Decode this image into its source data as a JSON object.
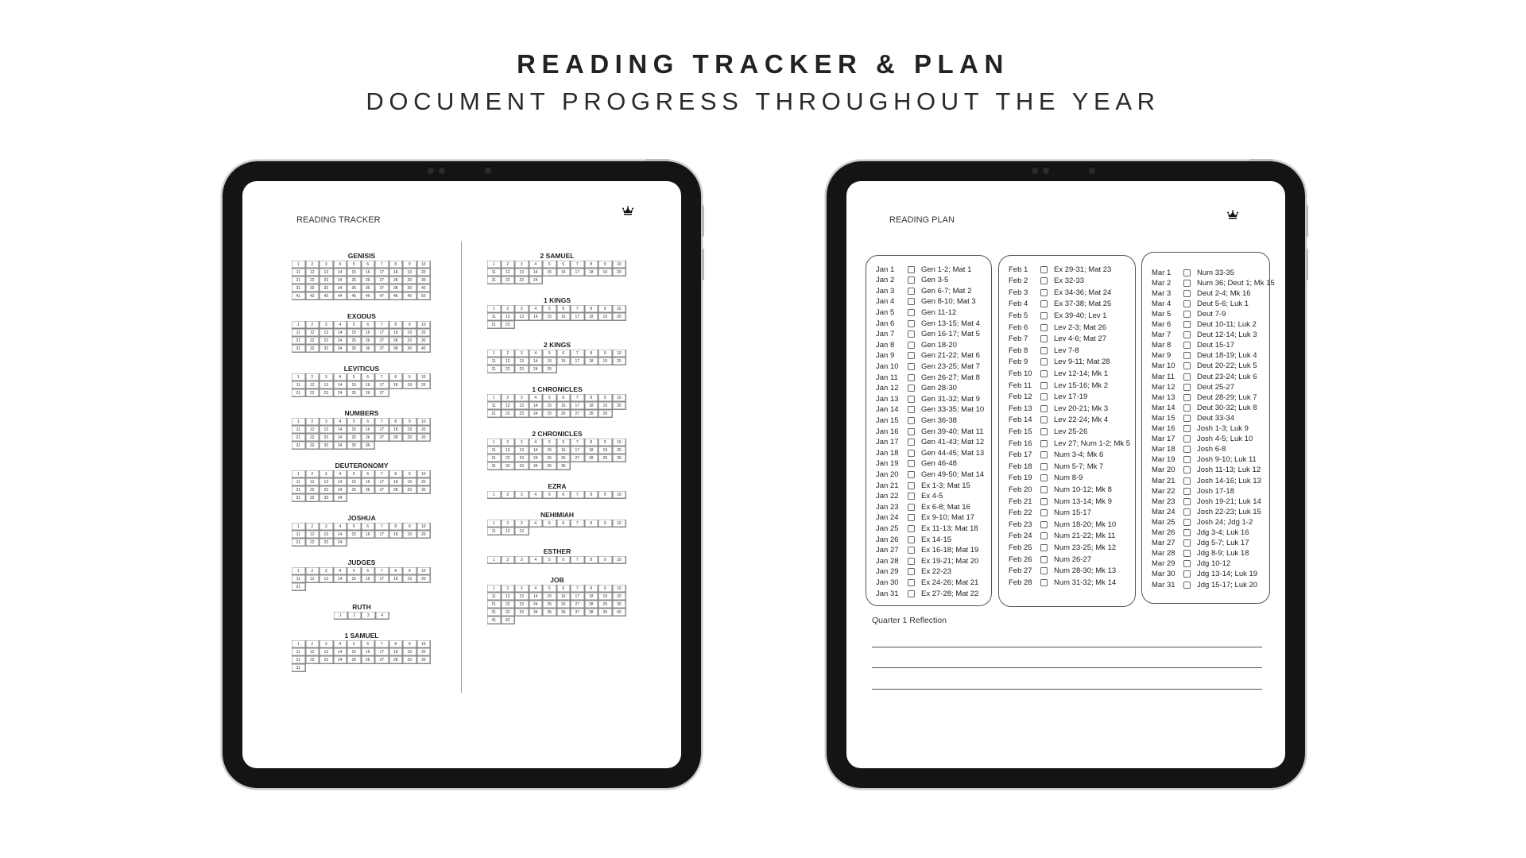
{
  "header": {
    "title": "READING TRACKER & PLAN",
    "subtitle": "DOCUMENT PROGRESS THROUGHOUT THE YEAR"
  },
  "tracker": {
    "title": "READING TRACKER",
    "columns": [
      [
        {
          "book": "GENISIS",
          "chapters": [
            1,
            2,
            3,
            4,
            5,
            6,
            7,
            8,
            9,
            10,
            11,
            12,
            13,
            14,
            15,
            16,
            17,
            18,
            19,
            20,
            21,
            22,
            23,
            24,
            25,
            26,
            27,
            28,
            29,
            30,
            31,
            32,
            33,
            34,
            35,
            36,
            37,
            38,
            39,
            40,
            41,
            42,
            43,
            44,
            45,
            46,
            47,
            48,
            49,
            50
          ]
        },
        {
          "book": "EXODUS",
          "chapters": [
            1,
            2,
            3,
            4,
            5,
            6,
            7,
            8,
            9,
            10,
            11,
            12,
            13,
            14,
            15,
            16,
            17,
            18,
            19,
            20,
            21,
            22,
            23,
            24,
            25,
            26,
            27,
            28,
            29,
            30,
            31,
            32,
            33,
            34,
            35,
            36,
            37,
            38,
            39,
            40
          ]
        },
        {
          "book": "LEVITICUS",
          "chapters": [
            1,
            2,
            3,
            4,
            5,
            6,
            7,
            8,
            9,
            10,
            11,
            12,
            13,
            14,
            15,
            16,
            17,
            18,
            19,
            20,
            21,
            22,
            23,
            24,
            25,
            26,
            27
          ]
        },
        {
          "book": "NUMBERS",
          "chapters": [
            1,
            2,
            3,
            4,
            5,
            6,
            7,
            8,
            9,
            10,
            11,
            12,
            13,
            14,
            15,
            16,
            17,
            18,
            19,
            20,
            21,
            22,
            23,
            24,
            25,
            26,
            27,
            28,
            29,
            30,
            31,
            32,
            33,
            34,
            35,
            36
          ]
        },
        {
          "book": "DEUTERONOMY",
          "chapters": [
            1,
            2,
            3,
            4,
            5,
            6,
            7,
            8,
            9,
            10,
            11,
            12,
            13,
            14,
            15,
            16,
            17,
            18,
            19,
            20,
            21,
            22,
            23,
            24,
            25,
            26,
            27,
            28,
            29,
            30,
            31,
            32,
            33,
            34
          ]
        },
        {
          "book": "JOSHUA",
          "chapters": [
            1,
            2,
            3,
            4,
            5,
            6,
            7,
            8,
            9,
            10,
            11,
            12,
            13,
            14,
            15,
            16,
            17,
            18,
            19,
            20,
            21,
            22,
            23,
            24
          ]
        },
        {
          "book": "JUDGES",
          "chapters": [
            1,
            2,
            3,
            4,
            5,
            6,
            7,
            8,
            9,
            10,
            11,
            12,
            13,
            14,
            15,
            16,
            17,
            18,
            19,
            20,
            21
          ]
        },
        {
          "book": "RUTH",
          "chapters": [
            1,
            2,
            3,
            4
          ]
        },
        {
          "book": "1 SAMUEL",
          "chapters": [
            1,
            2,
            3,
            4,
            5,
            6,
            7,
            8,
            9,
            10,
            11,
            12,
            13,
            14,
            15,
            16,
            17,
            18,
            19,
            20,
            21,
            22,
            23,
            24,
            25,
            26,
            27,
            28,
            29,
            30,
            31
          ]
        }
      ],
      [
        {
          "book": "2 SAMUEL",
          "chapters": [
            1,
            2,
            3,
            4,
            5,
            6,
            7,
            8,
            9,
            10,
            11,
            12,
            13,
            14,
            15,
            16,
            17,
            18,
            19,
            20,
            21,
            22,
            23,
            24
          ]
        },
        {
          "book": "1 KINGS",
          "chapters": [
            1,
            2,
            3,
            4,
            5,
            6,
            7,
            8,
            9,
            10,
            11,
            12,
            13,
            14,
            15,
            16,
            17,
            18,
            19,
            20,
            21,
            22
          ]
        },
        {
          "book": "2 KINGS",
          "chapters": [
            1,
            2,
            3,
            4,
            5,
            6,
            7,
            8,
            9,
            10,
            11,
            12,
            13,
            14,
            15,
            16,
            17,
            18,
            19,
            20,
            21,
            22,
            23,
            24,
            25
          ]
        },
        {
          "book": "1 CHRONICLES",
          "chapters": [
            1,
            2,
            3,
            4,
            5,
            6,
            7,
            8,
            9,
            10,
            11,
            12,
            13,
            14,
            15,
            16,
            17,
            18,
            19,
            20,
            21,
            22,
            23,
            24,
            25,
            26,
            27,
            28,
            29
          ]
        },
        {
          "book": "2 CHRONICLES",
          "chapters": [
            1,
            2,
            3,
            4,
            5,
            6,
            7,
            8,
            9,
            10,
            11,
            12,
            13,
            14,
            15,
            16,
            17,
            18,
            19,
            20,
            21,
            22,
            23,
            24,
            25,
            26,
            27,
            28,
            29,
            30,
            31,
            32,
            33,
            34,
            35,
            36
          ]
        },
        {
          "book": "EZRA",
          "chapters": [
            1,
            2,
            3,
            4,
            5,
            6,
            7,
            8,
            9,
            10
          ]
        },
        {
          "book": "NEHIMIAH",
          "chapters": [
            1,
            2,
            3,
            4,
            5,
            6,
            7,
            8,
            9,
            10,
            11,
            12,
            13
          ]
        },
        {
          "book": "ESTHER",
          "chapters": [
            1,
            2,
            3,
            4,
            5,
            6,
            7,
            8,
            9,
            10
          ]
        },
        {
          "book": "JOB",
          "chapters": [
            1,
            2,
            3,
            4,
            5,
            6,
            7,
            8,
            9,
            10,
            11,
            12,
            13,
            14,
            15,
            16,
            17,
            18,
            19,
            20,
            21,
            22,
            23,
            24,
            25,
            26,
            27,
            28,
            29,
            30,
            31,
            32,
            33,
            34,
            35,
            36,
            37,
            38,
            39,
            40,
            41,
            42
          ]
        }
      ]
    ]
  },
  "plan": {
    "title": "READING PLAN",
    "columns": [
      [
        [
          "Jan 1",
          "Gen 1-2; Mat 1"
        ],
        [
          "Jan 2",
          "Gen 3-5"
        ],
        [
          "Jan 3",
          "Gen 6-7; Mat 2"
        ],
        [
          "Jan 4",
          "Gen 8-10; Mat 3"
        ],
        [
          "Jan 5",
          "Gen 11-12"
        ],
        [
          "Jan 6",
          "Gen 13-15; Mat 4"
        ],
        [
          "Jan 7",
          "Gen 16-17; Mat 5"
        ],
        [
          "Jan 8",
          "Gen 18-20"
        ],
        [
          "Jan 9",
          "Gen 21-22; Mat 6"
        ],
        [
          "Jan 10",
          "Gen 23-25; Mat 7"
        ],
        [
          "Jan 11",
          "Gen 26-27; Mat 8"
        ],
        [
          "Jan 12",
          "Gen 28-30"
        ],
        [
          "Jan 13",
          "Gen 31-32; Mat 9"
        ],
        [
          "Jan 14",
          "Gen 33-35; Mat 10"
        ],
        [
          "Jan 15",
          "Gen 36-38"
        ],
        [
          "Jan 16",
          "Gen 39-40; Mat 11"
        ],
        [
          "Jan 17",
          "Gen 41-43; Mat 12"
        ],
        [
          "Jan 18",
          "Gen 44-45; Mat 13"
        ],
        [
          "Jan 19",
          "Gen 46-48"
        ],
        [
          "Jan 20",
          "Gen 49-50; Mat 14"
        ],
        [
          "Jan 21",
          "Ex 1-3; Mat 15"
        ],
        [
          "Jan 22",
          "Ex 4-5"
        ],
        [
          "Jan 23",
          "Ex 6-8; Mat 16"
        ],
        [
          "Jan 24",
          "Ex 9-10; Mat 17"
        ],
        [
          "Jan 25",
          "Ex 11-13; Mat 18"
        ],
        [
          "Jan 26",
          "Ex 14-15"
        ],
        [
          "Jan 27",
          "Ex 16-18; Mat 19"
        ],
        [
          "Jan 28",
          "Ex 19-21; Mat 20"
        ],
        [
          "Jan 29",
          "Ex 22-23"
        ],
        [
          "Jan 30",
          "Ex 24-26; Mat 21"
        ],
        [
          "Jan 31",
          "Ex 27-28; Mat 22"
        ]
      ],
      [
        [
          "Feb 1",
          "Ex 29-31; Mat 23"
        ],
        [
          "Feb 2",
          "Ex 32-33"
        ],
        [
          "Feb 3",
          "Ex 34-36; Mat 24"
        ],
        [
          "Feb 4",
          "Ex 37-38; Mat 25"
        ],
        [
          "Feb 5",
          "Ex 39-40; Lev 1"
        ],
        [
          "Feb 6",
          "Lev 2-3; Mat 26"
        ],
        [
          "Feb 7",
          "Lev 4-6; Mat 27"
        ],
        [
          "Feb 8",
          "Lev 7-8"
        ],
        [
          "Feb 9",
          "Lev 9-11; Mat 28"
        ],
        [
          "Feb 10",
          "Lev 12-14; Mk 1"
        ],
        [
          "Feb 11",
          "Lev 15-16; Mk 2"
        ],
        [
          "Feb 12",
          "Lev 17-19"
        ],
        [
          "Feb 13",
          "Lev 20-21; Mk 3"
        ],
        [
          "Feb 14",
          "Lev 22-24; Mk 4"
        ],
        [
          "Feb 15",
          "Lev 25-26"
        ],
        [
          "Feb 16",
          "Lev 27; Num 1-2; Mk 5"
        ],
        [
          "Feb 17",
          "Num 3-4; Mk 6"
        ],
        [
          "Feb 18",
          "Num 5-7; Mk 7"
        ],
        [
          "Feb 19",
          "Num 8-9"
        ],
        [
          "Feb 20",
          "Num 10-12; Mk 8"
        ],
        [
          "Feb 21",
          "Num 13-14; Mk 9"
        ],
        [
          "Feb 22",
          "Num 15-17"
        ],
        [
          "Feb 23",
          "Num 18-20; Mk 10"
        ],
        [
          "Feb 24",
          "Num 21-22; Mk 11"
        ],
        [
          "Feb 25",
          "Num 23-25; Mk 12"
        ],
        [
          "Feb 26",
          "Num 26-27"
        ],
        [
          "Feb 27",
          "Num 28-30; Mk 13"
        ],
        [
          "Feb 28",
          "Num 31-32; Mk 14"
        ]
      ],
      [
        [
          "Mar 1",
          "Num 33-35"
        ],
        [
          "Mar 2",
          "Num 36; Deut 1; Mk 15"
        ],
        [
          "Mar 3",
          "Deut 2-4; Mk 16"
        ],
        [
          "Mar 4",
          "Deut 5-6; Luk 1"
        ],
        [
          "Mar 5",
          "Deut 7-9"
        ],
        [
          "Mar 6",
          "Deut 10-11; Luk 2"
        ],
        [
          "Mar 7",
          "Deut 12-14; Luk 3"
        ],
        [
          "Mar 8",
          "Deut 15-17"
        ],
        [
          "Mar 9",
          "Deut 18-19; Luk 4"
        ],
        [
          "Mar 10",
          "Deut 20-22; Luk 5"
        ],
        [
          "Mar 11",
          "Deut 23-24; Luk 6"
        ],
        [
          "Mar 12",
          "Deut 25-27"
        ],
        [
          "Mar 13",
          "Deut 28-29; Luk 7"
        ],
        [
          "Mar 14",
          "Deut 30-32; Luk 8"
        ],
        [
          "Mar 15",
          "Deut 33-34"
        ],
        [
          "Mar 16",
          "Josh 1-3; Luk 9"
        ],
        [
          "Mar 17",
          "Josh 4-5; Luk 10"
        ],
        [
          "Mar 18",
          "Josh 6-8"
        ],
        [
          "Mar 19",
          "Josh 9-10; Luk 11"
        ],
        [
          "Mar 20",
          "Josh 11-13; Luk 12"
        ],
        [
          "Mar 21",
          "Josh 14-16; Luk 13"
        ],
        [
          "Mar 22",
          "Josh 17-18"
        ],
        [
          "Mar 23",
          "Josh 19-21; Luk 14"
        ],
        [
          "Mar 24",
          "Josh 22-23; Luk 15"
        ],
        [
          "Mar 25",
          "Josh 24; Jdg 1-2"
        ],
        [
          "Mar 26",
          "Jdg 3-4; Luk 16"
        ],
        [
          "Mar 27",
          "Jdg 5-7; Luk 17"
        ],
        [
          "Mar 28",
          "Jdg 8-9; Luk 18"
        ],
        [
          "Mar 29",
          "Jdg 10-12"
        ],
        [
          "Mar 30",
          "Jdg 13-14; Luk 19"
        ],
        [
          "Mar 31",
          "Jdg 15-17; Luk 20"
        ]
      ]
    ],
    "reflection": "Quarter 1 Reflection"
  }
}
